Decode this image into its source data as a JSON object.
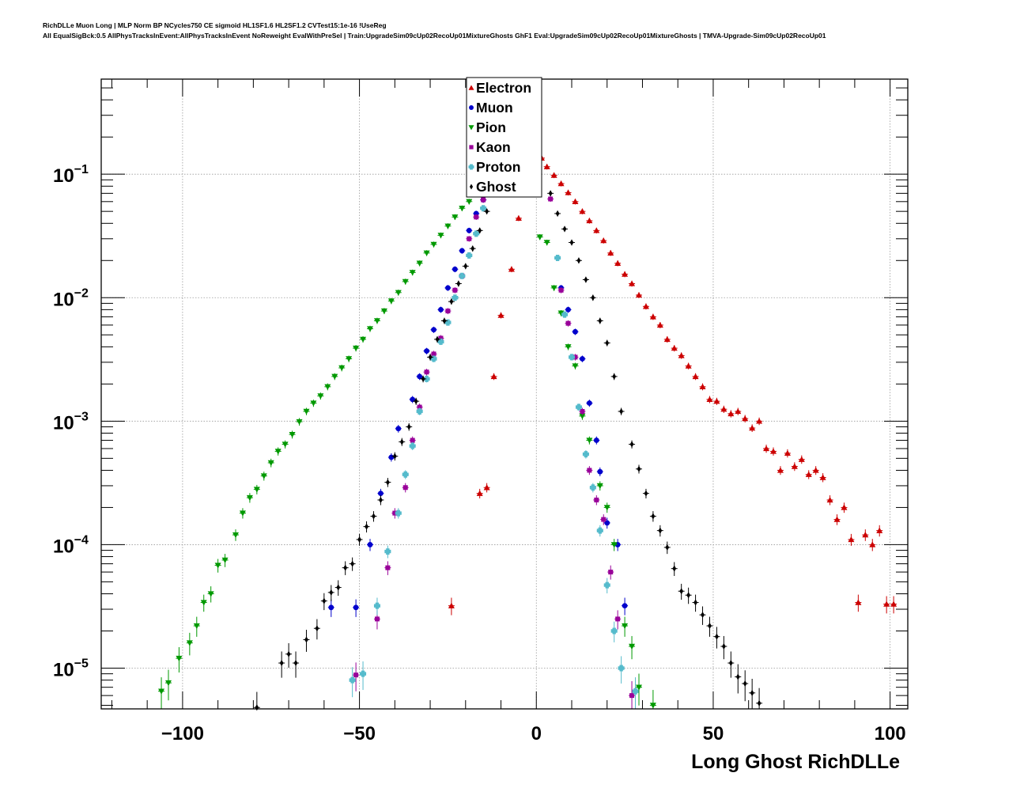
{
  "chart_data": {
    "type": "scatter",
    "title_line1": "RichDLLe Muon Long | MLP Norm BP NCycles750 CE sigmoid HL1SF1.6 HL2SF1.2 CVTest15:1e-16 !UseReg",
    "title_line2": "All EqualSigBck:0.5 AllPhysTracksInEvent:AllPhysTracksInEvent NoReweight EvalWithPreSel | Train:UpgradeSim09cUp02RecoUp01MixtureGhosts GhF1 Eval:UpgradeSim09cUp02RecoUp01MixtureGhosts | TMVA-Upgrade-Sim09cUp02RecoUp01",
    "xlabel": "Long Ghost RichDLLe",
    "xlim": [
      -123,
      105
    ],
    "ylim_log10": [
      -5.33,
      -0.23
    ],
    "yscale": "log",
    "grid": true,
    "x_ticks": [
      {
        "value": -100,
        "label": "−100"
      },
      {
        "value": -50,
        "label": "−50"
      },
      {
        "value": 0,
        "label": "0"
      },
      {
        "value": 50,
        "label": "50"
      },
      {
        "value": 100,
        "label": "100"
      }
    ],
    "y_ticks": [
      {
        "exp": -1,
        "base": "10",
        "sup": "−1"
      },
      {
        "exp": -2,
        "base": "10",
        "sup": "−2"
      },
      {
        "exp": -3,
        "base": "10",
        "sup": "−3"
      },
      {
        "exp": -4,
        "base": "10",
        "sup": "−4"
      },
      {
        "exp": -5,
        "base": "10",
        "sup": "−5"
      }
    ],
    "legend_position": "top-center",
    "series": [
      {
        "name": "Electron",
        "color": "#cc0000",
        "marker": "triangle-up",
        "points": [
          [
            -24,
            3.2e-05
          ],
          [
            -14,
            0.00029
          ],
          [
            -16,
            0.00026
          ],
          [
            -12,
            0.0023
          ],
          [
            -10,
            0.0072
          ],
          [
            -7,
            0.017
          ],
          [
            -5,
            0.044
          ],
          [
            1.5,
            0.135
          ],
          [
            3,
            0.115
          ],
          [
            5,
            0.098
          ],
          [
            7,
            0.084
          ],
          [
            9,
            0.071
          ],
          [
            11,
            0.06
          ],
          [
            13,
            0.05
          ],
          [
            15,
            0.042
          ],
          [
            17,
            0.035
          ],
          [
            19,
            0.029
          ],
          [
            21,
            0.023
          ],
          [
            23,
            0.019
          ],
          [
            25,
            0.0155
          ],
          [
            27,
            0.013
          ],
          [
            29,
            0.0105
          ],
          [
            31,
            0.0085
          ],
          [
            33,
            0.007
          ],
          [
            35,
            0.006
          ],
          [
            37,
            0.0046
          ],
          [
            39,
            0.0039
          ],
          [
            41,
            0.0034
          ],
          [
            43,
            0.0028
          ],
          [
            45,
            0.0023
          ],
          [
            47,
            0.0019
          ],
          [
            49,
            0.0015
          ],
          [
            51,
            0.00145
          ],
          [
            53,
            0.00125
          ],
          [
            55,
            0.00115
          ],
          [
            57,
            0.0012
          ],
          [
            59,
            0.00105
          ],
          [
            61,
            0.00088
          ],
          [
            63,
            0.001
          ],
          [
            65,
            0.0006
          ],
          [
            67,
            0.00057
          ],
          [
            69,
            0.0004
          ],
          [
            71,
            0.00055
          ],
          [
            73,
            0.00043
          ],
          [
            75,
            0.00049
          ],
          [
            77,
            0.00037
          ],
          [
            79,
            0.0004
          ],
          [
            81,
            0.00035
          ],
          [
            83,
            0.00023
          ],
          [
            85,
            0.00016
          ],
          [
            87,
            0.0002
          ],
          [
            89,
            0.00011
          ],
          [
            91,
            3.4e-05
          ],
          [
            93,
            0.00012
          ],
          [
            95,
            0.0001
          ],
          [
            97,
            0.00013
          ],
          [
            99,
            3.3e-05
          ],
          [
            101,
            3.3e-05
          ]
        ]
      },
      {
        "name": "Muon",
        "color": "#0000cc",
        "marker": "circle",
        "points": [
          [
            -58,
            3.1e-05
          ],
          [
            -51,
            3.1e-05
          ],
          [
            -47,
            0.0001
          ],
          [
            -44,
            0.00026
          ],
          [
            -41,
            0.00051
          ],
          [
            -39,
            0.00087
          ],
          [
            -35,
            0.0015
          ],
          [
            -33,
            0.0023
          ],
          [
            -31,
            0.0037
          ],
          [
            -29,
            0.0055
          ],
          [
            -27,
            0.008
          ],
          [
            -25,
            0.012
          ],
          [
            -23,
            0.017
          ],
          [
            -21,
            0.024
          ],
          [
            -19,
            0.035
          ],
          [
            -17,
            0.048
          ],
          [
            -15,
            0.062
          ],
          [
            7,
            0.012
          ],
          [
            9,
            0.008
          ],
          [
            11,
            0.0053
          ],
          [
            13,
            0.0032
          ],
          [
            15,
            0.0014
          ],
          [
            17,
            0.0007
          ],
          [
            18,
            0.00039
          ],
          [
            20,
            0.00015
          ],
          [
            23,
            0.0001
          ],
          [
            25,
            3.2e-05
          ]
        ]
      },
      {
        "name": "Pion",
        "color": "#009900",
        "marker": "triangle-down",
        "points": [
          [
            -106,
            6.5e-06
          ],
          [
            -104,
            7.6e-06
          ],
          [
            -101,
            1.2e-05
          ],
          [
            -98,
            1.6e-05
          ],
          [
            -96,
            2.2e-05
          ],
          [
            -94,
            3.4e-05
          ],
          [
            -92,
            4e-05
          ],
          [
            -90,
            6.8e-05
          ],
          [
            -88,
            7.5e-05
          ],
          [
            -85,
            0.00012
          ],
          [
            -83,
            0.00018
          ],
          [
            -81,
            0.00024
          ],
          [
            -79,
            0.00028
          ],
          [
            -77,
            0.00036
          ],
          [
            -75,
            0.00046
          ],
          [
            -73,
            0.00057
          ],
          [
            -71,
            0.00065
          ],
          [
            -69,
            0.00078
          ],
          [
            -67,
            0.00099
          ],
          [
            -65,
            0.0012
          ],
          [
            -63,
            0.0014
          ],
          [
            -61,
            0.0016
          ],
          [
            -59,
            0.0019
          ],
          [
            -57,
            0.0023
          ],
          [
            -55,
            0.0027
          ],
          [
            -53,
            0.0032
          ],
          [
            -51,
            0.0039
          ],
          [
            -49,
            0.0046
          ],
          [
            -47,
            0.0056
          ],
          [
            -45,
            0.0065
          ],
          [
            -43,
            0.0078
          ],
          [
            -41,
            0.0094
          ],
          [
            -39,
            0.011
          ],
          [
            -37,
            0.0135
          ],
          [
            -35,
            0.016
          ],
          [
            -33,
            0.019
          ],
          [
            -31,
            0.023
          ],
          [
            -29,
            0.027
          ],
          [
            -27,
            0.032
          ],
          [
            -25,
            0.038
          ],
          [
            -23,
            0.045
          ],
          [
            -21,
            0.053
          ],
          [
            -19,
            0.06
          ],
          [
            -17,
            0.07
          ],
          [
            -15,
            0.082
          ],
          [
            -13,
            0.09
          ],
          [
            1,
            0.031
          ],
          [
            3,
            0.028
          ],
          [
            5,
            0.012
          ],
          [
            7,
            0.0075
          ],
          [
            9,
            0.004
          ],
          [
            11,
            0.0028
          ],
          [
            13,
            0.0011
          ],
          [
            15,
            0.0007
          ],
          [
            18,
            0.0003
          ],
          [
            20,
            0.0002
          ],
          [
            22,
            0.0001
          ],
          [
            25,
            2.2e-05
          ],
          [
            27,
            1.5e-05
          ],
          [
            29,
            7e-06
          ],
          [
            33,
            5e-06
          ]
        ]
      },
      {
        "name": "Kaon",
        "color": "#990099",
        "marker": "square",
        "points": [
          [
            -51,
            8.8e-06
          ],
          [
            -45,
            2.5e-05
          ],
          [
            -42,
            6.5e-05
          ],
          [
            -40,
            0.00018
          ],
          [
            -37,
            0.00029
          ],
          [
            -35,
            0.0007
          ],
          [
            -33,
            0.0013
          ],
          [
            -31,
            0.0025
          ],
          [
            -29,
            0.0035
          ],
          [
            -27,
            0.0047
          ],
          [
            -25,
            0.0078
          ],
          [
            -23,
            0.0115
          ],
          [
            -21,
            0.015
          ],
          [
            -19,
            0.03
          ],
          [
            -17,
            0.045
          ],
          [
            -15,
            0.062
          ],
          [
            4,
            0.063
          ],
          [
            7,
            0.0115
          ],
          [
            9,
            0.0062
          ],
          [
            11,
            0.0033
          ],
          [
            13,
            0.0012
          ],
          [
            15,
            0.0004
          ],
          [
            17,
            0.00023
          ],
          [
            19,
            0.00016
          ],
          [
            21,
            6e-05
          ],
          [
            23,
            2.5e-05
          ],
          [
            27,
            6e-06
          ],
          [
            32,
            4.5e-06
          ]
        ]
      },
      {
        "name": "Proton",
        "color": "#55bbcc",
        "marker": "cross",
        "points": [
          [
            -62,
            4.5e-06
          ],
          [
            -59,
            4.5e-06
          ],
          [
            -57,
            4.5e-06
          ],
          [
            -55,
            4.5e-06
          ],
          [
            -52,
            8e-06
          ],
          [
            -49,
            9e-06
          ],
          [
            -45,
            3.2e-05
          ],
          [
            -42,
            8.8e-05
          ],
          [
            -39,
            0.00018
          ],
          [
            -37,
            0.00037
          ],
          [
            -35,
            0.00063
          ],
          [
            -33,
            0.0012
          ],
          [
            -31,
            0.0022
          ],
          [
            -29,
            0.0032
          ],
          [
            -27,
            0.0044
          ],
          [
            -25,
            0.0063
          ],
          [
            -23,
            0.01
          ],
          [
            -21,
            0.015
          ],
          [
            -19,
            0.022
          ],
          [
            -17,
            0.033
          ],
          [
            -15,
            0.053
          ],
          [
            -13,
            0.072
          ],
          [
            6,
            0.021
          ],
          [
            8,
            0.0073
          ],
          [
            10,
            0.0033
          ],
          [
            12,
            0.0013
          ],
          [
            14,
            0.00054
          ],
          [
            16,
            0.00029
          ],
          [
            18,
            0.00013
          ],
          [
            20,
            4.7e-05
          ],
          [
            22,
            2e-05
          ],
          [
            24,
            1e-05
          ],
          [
            28,
            6.5e-06
          ]
        ]
      },
      {
        "name": "Ghost",
        "color": "#000000",
        "marker": "diamond",
        "points": [
          [
            -79,
            4.8e-06
          ],
          [
            -72,
            1.1e-05
          ],
          [
            -70,
            1.3e-05
          ],
          [
            -68,
            1.1e-05
          ],
          [
            -65,
            1.7e-05
          ],
          [
            -62,
            2.1e-05
          ],
          [
            -60,
            3.5e-05
          ],
          [
            -58,
            4.1e-05
          ],
          [
            -56,
            4.5e-05
          ],
          [
            -54,
            6.5e-05
          ],
          [
            -52,
            7e-05
          ],
          [
            -50,
            0.00011
          ],
          [
            -48,
            0.00014
          ],
          [
            -46,
            0.00017
          ],
          [
            -44,
            0.00023
          ],
          [
            -42,
            0.00032
          ],
          [
            -40,
            0.00052
          ],
          [
            -38,
            0.00068
          ],
          [
            -36,
            0.0009
          ],
          [
            -34,
            0.00145
          ],
          [
            -32,
            0.0022
          ],
          [
            -30,
            0.0033
          ],
          [
            -28,
            0.0046
          ],
          [
            -26,
            0.0065
          ],
          [
            -24,
            0.0093
          ],
          [
            -22,
            0.013
          ],
          [
            -20,
            0.018
          ],
          [
            -18,
            0.025
          ],
          [
            -16,
            0.035
          ],
          [
            -14,
            0.05
          ],
          [
            4,
            0.07
          ],
          [
            6,
            0.048
          ],
          [
            8,
            0.036
          ],
          [
            10,
            0.028
          ],
          [
            12,
            0.02
          ],
          [
            14,
            0.014
          ],
          [
            16,
            0.01
          ],
          [
            18,
            0.0065
          ],
          [
            20,
            0.0043
          ],
          [
            22,
            0.0023
          ],
          [
            24,
            0.0012
          ],
          [
            27,
            0.00065
          ],
          [
            29,
            0.00041
          ],
          [
            31,
            0.00026
          ],
          [
            33,
            0.00017
          ],
          [
            35,
            0.00013
          ],
          [
            37,
            9.5e-05
          ],
          [
            39,
            6.4e-05
          ],
          [
            41,
            4.2e-05
          ],
          [
            43,
            3.9e-05
          ],
          [
            45,
            3.4e-05
          ],
          [
            47,
            2.7e-05
          ],
          [
            49,
            2.2e-05
          ],
          [
            51,
            1.8e-05
          ],
          [
            53,
            1.5e-05
          ],
          [
            55,
            1.1e-05
          ],
          [
            57,
            8.5e-06
          ],
          [
            59,
            7.5e-06
          ],
          [
            61,
            6.3e-06
          ],
          [
            63,
            5.2e-06
          ]
        ]
      }
    ]
  }
}
